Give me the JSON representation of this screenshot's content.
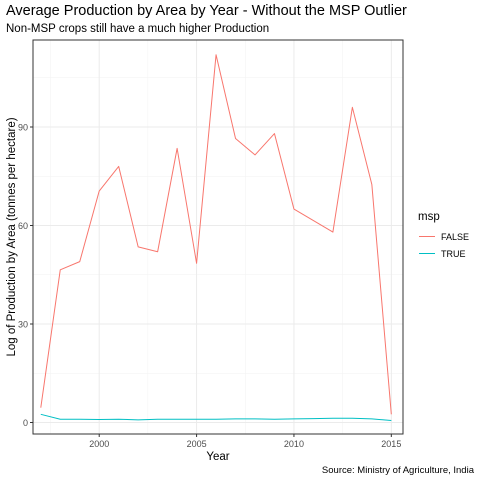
{
  "chart_data": {
    "type": "line",
    "title": "Average Production by Area by Year - Without the MSP Outlier",
    "subtitle": "Non-MSP crops still have a much higher Production",
    "xlabel": "Year",
    "ylabel": "Log of Production by Area (tonnes per hectare)",
    "caption": "Source: Ministry of Agriculture, India",
    "x_ticks": [
      2000,
      2005,
      2010,
      2015
    ],
    "y_ticks": [
      0,
      30,
      60,
      90
    ],
    "xlim": [
      1996.6,
      2015.6
    ],
    "ylim": [
      -3.5,
      116.5
    ],
    "grid": true,
    "legend": {
      "title": "msp",
      "position": "right",
      "entries": [
        "FALSE",
        "TRUE"
      ]
    },
    "series": [
      {
        "name": "FALSE",
        "color": "#F8766D",
        "x": [
          1997,
          1998,
          1999,
          2000,
          2001,
          2002,
          2003,
          2004,
          2005,
          2006,
          2007,
          2008,
          2009,
          2010,
          2012,
          2013,
          2014,
          2015
        ],
        "y": [
          4.5,
          46.5,
          49,
          70.5,
          78,
          53.5,
          52,
          83.5,
          48.5,
          112,
          86.5,
          81.5,
          88,
          65,
          58,
          96,
          72.5,
          2.5
        ]
      },
      {
        "name": "TRUE",
        "color": "#00BFC4",
        "x": [
          1997,
          1998,
          1999,
          2000,
          2001,
          2002,
          2003,
          2004,
          2005,
          2006,
          2007,
          2008,
          2009,
          2010,
          2011,
          2012,
          2013,
          2014,
          2015
        ],
        "y": [
          2.5,
          1.0,
          1.0,
          0.9,
          1.0,
          0.8,
          1.0,
          1.0,
          1.0,
          1.0,
          1.1,
          1.1,
          1.0,
          1.1,
          1.2,
          1.3,
          1.3,
          1.1,
          0.6
        ]
      }
    ]
  }
}
